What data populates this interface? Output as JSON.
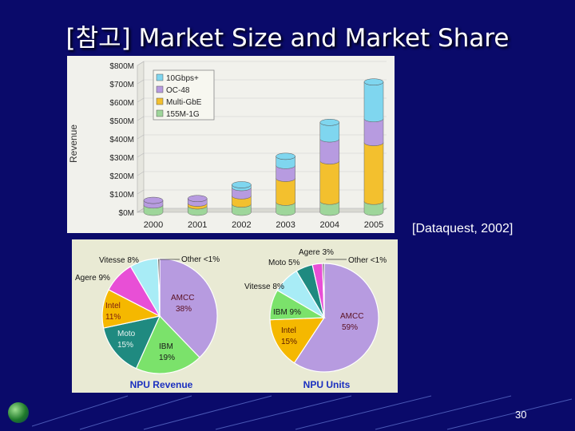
{
  "slide": {
    "title": "[참고] Market Size and Market Share",
    "source": "[Dataquest, 2002]",
    "page_number": "30"
  },
  "colors": {
    "background": "#0a0a6a",
    "seg_155m": "#9ed69a",
    "seg_multigbe": "#f3c02e",
    "seg_oc48": "#b79be0",
    "seg_10g": "#7fd6ef"
  },
  "chart_data": [
    {
      "type": "bar",
      "stacked": true,
      "ylabel": "Revenue",
      "categories": [
        "2000",
        "2001",
        "2002",
        "2003",
        "2004",
        "2005"
      ],
      "ytick_labels": [
        "$0M",
        "$100M",
        "$200M",
        "$300M",
        "$400M",
        "$500M",
        "$600M",
        "$700M",
        "$800M"
      ],
      "ylim": [
        0,
        800
      ],
      "legend_position": "top-left",
      "series": [
        {
          "name": "155M-1G",
          "color": "#9ed69a",
          "values": [
            40,
            35,
            45,
            55,
            60,
            60
          ]
        },
        {
          "name": "Multi-GbE",
          "color": "#f3c02e",
          "values": [
            0,
            15,
            45,
            130,
            220,
            320
          ]
        },
        {
          "name": "OC-48",
          "color": "#b79be0",
          "values": [
            25,
            25,
            45,
            70,
            120,
            130
          ]
        },
        {
          "name": "10Gbps+",
          "color": "#7fd6ef",
          "values": [
            0,
            0,
            15,
            50,
            90,
            200
          ]
        }
      ]
    },
    {
      "type": "pie",
      "title": "NPU Revenue",
      "slices": [
        {
          "label": "AMCC",
          "pct_text": "38%",
          "value": 38,
          "color": "#b79be0"
        },
        {
          "label": "IBM",
          "pct_text": "19%",
          "value": 19,
          "color": "#7be26b"
        },
        {
          "label": "Moto",
          "pct_text": "15%",
          "value": 15,
          "color": "#1f8a80"
        },
        {
          "label": "Intel",
          "pct_text": "11%",
          "value": 11,
          "color": "#f5b800"
        },
        {
          "label": "Agere",
          "pct_text": "9%",
          "value": 9,
          "color": "#e84fd6"
        },
        {
          "label": "Vitesse",
          "pct_text": "8%",
          "value": 8,
          "color": "#a8ecf6"
        },
        {
          "label": "Other",
          "pct_text": "<1%",
          "value": 0.5,
          "color": "#222222"
        }
      ],
      "label_texts": [
        "AMCC 38%",
        "IBM 19%",
        "Moto 15%",
        "Intel 11%",
        "Agere 9%",
        "Vitesse 8%",
        "Other <1%"
      ]
    },
    {
      "type": "pie",
      "title": "NPU Units",
      "slices": [
        {
          "label": "AMCC",
          "pct_text": "59%",
          "value": 59,
          "color": "#b79be0"
        },
        {
          "label": "Intel",
          "pct_text": "15%",
          "value": 15,
          "color": "#f5b800"
        },
        {
          "label": "IBM",
          "pct_text": "9%",
          "value": 9,
          "color": "#7be26b"
        },
        {
          "label": "Vitesse",
          "pct_text": "8%",
          "value": 8,
          "color": "#a8ecf6"
        },
        {
          "label": "Moto",
          "pct_text": "5%",
          "value": 5,
          "color": "#1f8a80"
        },
        {
          "label": "Agere",
          "pct_text": "3%",
          "value": 3,
          "color": "#e84fd6"
        },
        {
          "label": "Other",
          "pct_text": "<1%",
          "value": 0.5,
          "color": "#222222"
        }
      ],
      "label_texts": [
        "AMCC 59%",
        "Intel 15%",
        "IBM 9%",
        "Vitesse 8%",
        "Moto 5%",
        "Agere 3%",
        "Other <1%"
      ]
    }
  ]
}
